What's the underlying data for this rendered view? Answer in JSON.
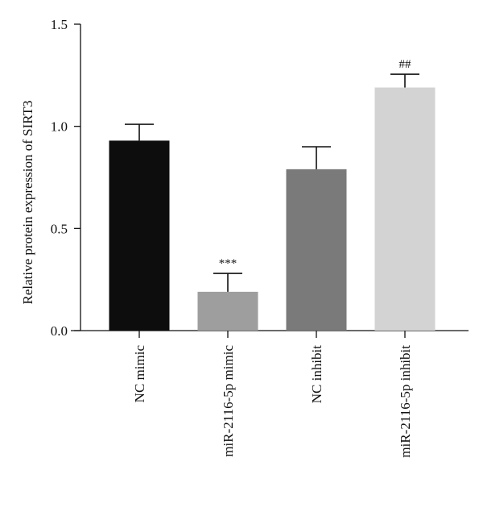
{
  "chart_data": {
    "type": "bar",
    "categories": [
      "NC mimic",
      "miR-2116-5p mimic",
      "NC inhibit",
      "miR-2116-5p inhibit"
    ],
    "values": [
      0.93,
      0.19,
      0.79,
      1.19
    ],
    "errors": [
      0.08,
      0.09,
      0.11,
      0.065
    ],
    "annotations": [
      "",
      "***",
      "",
      "##"
    ],
    "colors": [
      "#0d0d0d",
      "#9e9e9e",
      "#7a7a7a",
      "#d3d3d3"
    ],
    "ylabel": "Relative protein expression of SIRT3",
    "ylim": [
      0,
      1.5
    ],
    "yticks": [
      0.0,
      0.5,
      1.0,
      1.5
    ],
    "ytick_labels": [
      "0.0",
      "0.5",
      "1.0",
      "1.5"
    ],
    "grid": false,
    "legend": "none"
  }
}
